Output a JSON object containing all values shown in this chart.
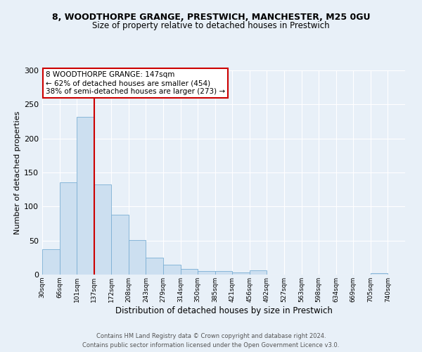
{
  "title": "8, WOODTHORPE GRANGE, PRESTWICH, MANCHESTER, M25 0GU",
  "subtitle": "Size of property relative to detached houses in Prestwich",
  "xlabel": "Distribution of detached houses by size in Prestwich",
  "ylabel": "Number of detached properties",
  "bar_color": "#ccdff0",
  "bar_edge_color": "#7bafd4",
  "bin_labels": [
    "30sqm",
    "66sqm",
    "101sqm",
    "137sqm",
    "172sqm",
    "208sqm",
    "243sqm",
    "279sqm",
    "314sqm",
    "350sqm",
    "385sqm",
    "421sqm",
    "456sqm",
    "492sqm",
    "527sqm",
    "563sqm",
    "598sqm",
    "634sqm",
    "669sqm",
    "705sqm",
    "740sqm"
  ],
  "bar_values": [
    37,
    136,
    232,
    132,
    88,
    51,
    25,
    14,
    8,
    5,
    5,
    3,
    6,
    0,
    0,
    0,
    0,
    0,
    0,
    2,
    0
  ],
  "ylim": [
    0,
    300
  ],
  "yticks": [
    0,
    50,
    100,
    150,
    200,
    250,
    300
  ],
  "vline_x": 3,
  "vline_label": "8 WOODTHORPE GRANGE: 147sqm",
  "annotation_line2": "← 62% of detached houses are smaller (454)",
  "annotation_line3": "38% of semi-detached houses are larger (273) →",
  "box_color": "#ffffff",
  "box_edge_color": "#cc0000",
  "vline_color": "#cc0000",
  "footer1": "Contains HM Land Registry data © Crown copyright and database right 2024.",
  "footer2": "Contains public sector information licensed under the Open Government Licence v3.0.",
  "background_color": "#e8f0f8",
  "plot_bg_color": "#e8f0f8",
  "title_fontsize": 9,
  "subtitle_fontsize": 8.5,
  "ylabel_fontsize": 8,
  "xlabel_fontsize": 8.5
}
